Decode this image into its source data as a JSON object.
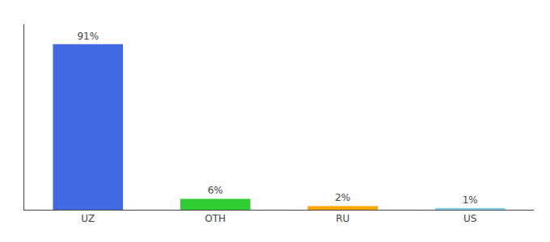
{
  "chart_data": {
    "type": "bar",
    "categories": [
      "UZ",
      "OTH",
      "RU",
      "US"
    ],
    "values": [
      91,
      6,
      2,
      1
    ],
    "value_labels": [
      "91%",
      "6%",
      "2%",
      "1%"
    ],
    "colors": [
      "#4169e1",
      "#32cd32",
      "#ffa500",
      "#87ceeb"
    ],
    "data_labels": true,
    "ylim": [
      0,
      102
    ],
    "grid": false,
    "tick_labels": "x"
  }
}
